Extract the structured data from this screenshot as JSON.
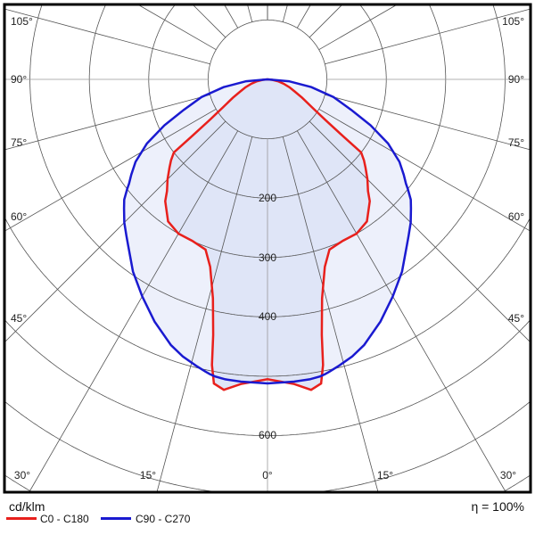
{
  "chart_data": {
    "type": "polar-line",
    "unit": "cd/klm",
    "efficiency": "η = 100%",
    "radial_ticks": [
      100,
      200,
      300,
      400,
      500,
      600,
      700,
      800,
      900
    ],
    "radial_tick_labels": [
      "200",
      "300",
      "400",
      "600"
    ],
    "angle_labels": {
      "left": [
        "105°",
        "90°",
        "75°",
        "60°",
        "45°"
      ],
      "bottom": [
        "30°",
        "15°",
        "0°",
        "15°",
        "30°"
      ],
      "right": [
        "105°",
        "90°",
        "75°",
        "60°",
        "45°"
      ]
    },
    "grid": true,
    "legend_position": "bottom-left",
    "angles_deg": [
      0,
      5,
      8,
      10,
      11,
      12,
      14,
      17,
      20,
      25,
      30,
      35,
      40,
      42,
      45,
      48,
      50,
      52,
      53,
      55,
      58,
      62,
      66,
      70,
      75,
      80,
      85,
      90
    ],
    "series": [
      {
        "name": "C0 - C180",
        "color": "#e8201c",
        "values": [
          505,
          515,
          528,
          520,
          490,
          440,
          380,
          330,
          305,
          300,
          300,
          292,
          268,
          253,
          238,
          222,
          212,
          200,
          160,
          118,
          88,
          66,
          50,
          40,
          28,
          18,
          8,
          0
        ]
      },
      {
        "name": "C90 - C270",
        "color": "#1a1ad0",
        "values": [
          512,
          511,
          510,
          508,
          506,
          503,
          497,
          488,
          476,
          450,
          422,
          395,
          365,
          355,
          341,
          325,
          315,
          300,
          292,
          280,
          262,
          230,
          190,
          150,
          115,
          75,
          36,
          0
        ]
      }
    ]
  }
}
